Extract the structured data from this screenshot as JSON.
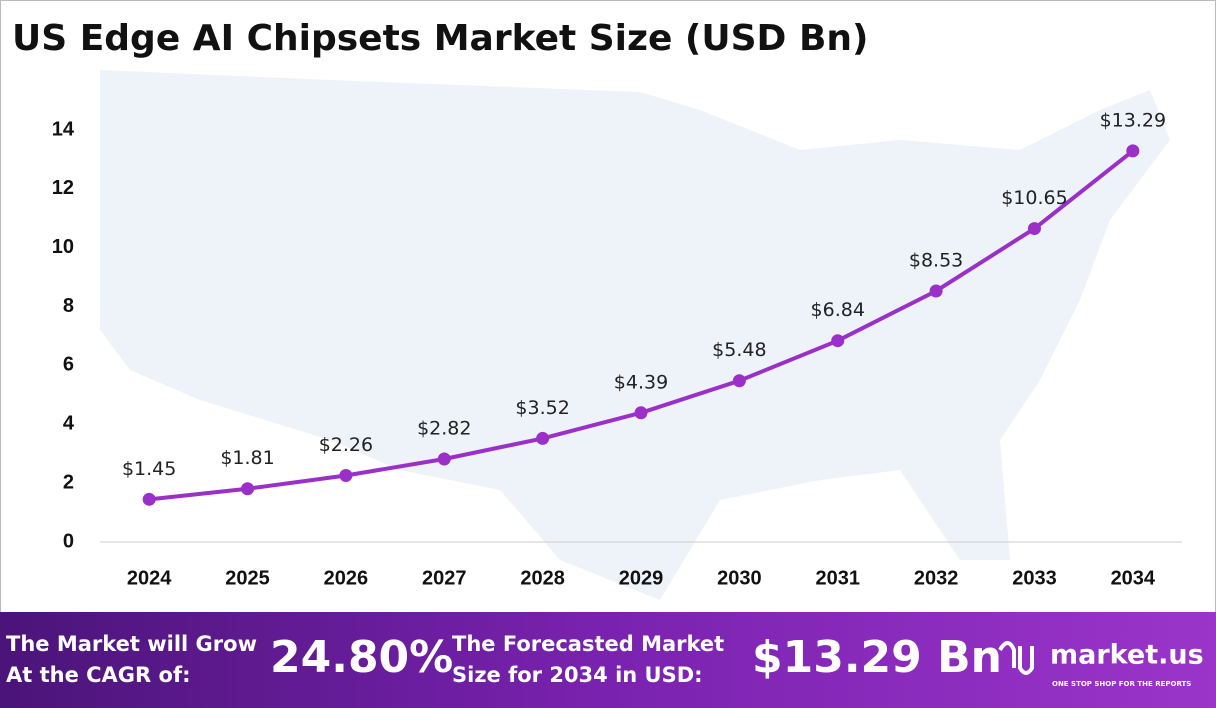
{
  "chart_data": {
    "type": "line",
    "title": "US Edge AI Chipsets Market Size (USD Bn)",
    "categories": [
      "2024",
      "2025",
      "2026",
      "2027",
      "2028",
      "2029",
      "2030",
      "2031",
      "2032",
      "2033",
      "2034"
    ],
    "series": [
      {
        "name": "Market Size",
        "color": "#9b30c8",
        "values": [
          1.45,
          1.81,
          2.26,
          2.82,
          3.52,
          4.39,
          5.48,
          6.84,
          8.53,
          10.65,
          13.29
        ],
        "value_labels": [
          "$1.45",
          "$1.81",
          "$2.26",
          "$2.82",
          "$3.52",
          "$4.39",
          "$5.48",
          "$6.84",
          "$8.53",
          "$10.65",
          "$13.29"
        ]
      }
    ],
    "ylim": [
      0,
      14
    ],
    "yticks": [
      0,
      2,
      4,
      6,
      8,
      10,
      12,
      14
    ],
    "grid": false
  },
  "footer": {
    "cagr_text": [
      "The Market will Grow",
      "At the CAGR of:"
    ],
    "cagr_value": "24.80%",
    "forecast_text": [
      "The Forecasted Market",
      "Size for 2034 in USD:"
    ],
    "forecast_value": "$13.29 Bn",
    "brand": "market.us",
    "tagline": "ONE STOP SHOP FOR THE REPORTS"
  }
}
